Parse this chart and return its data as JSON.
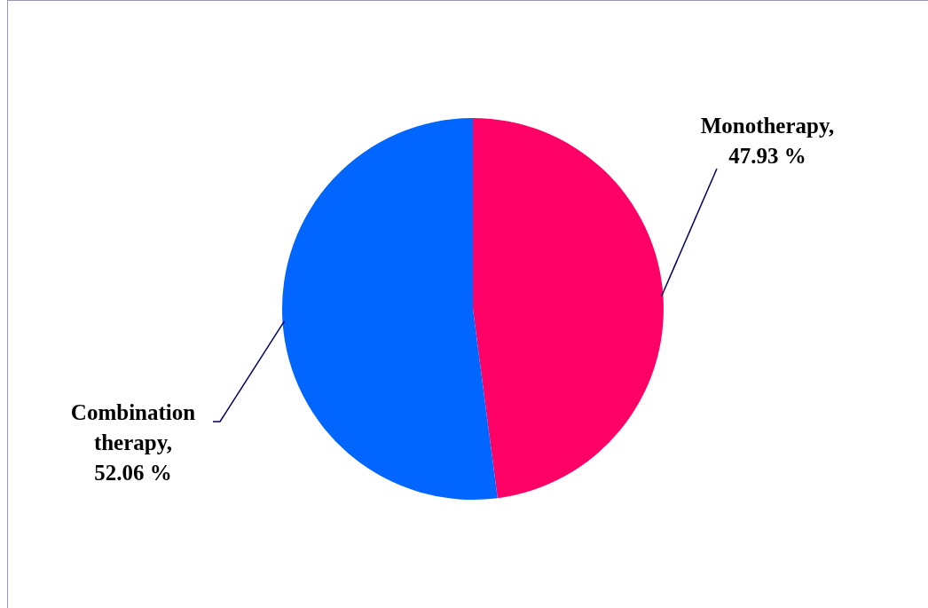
{
  "chart_data": {
    "type": "pie",
    "categories": [
      "Monotherapy",
      "Combination therapy"
    ],
    "values": [
      47.93,
      52.06
    ],
    "colors": [
      "#ff0066",
      "#0066ff"
    ],
    "value_labels": [
      ", 47.93 %",
      ", 52.06 %"
    ]
  }
}
